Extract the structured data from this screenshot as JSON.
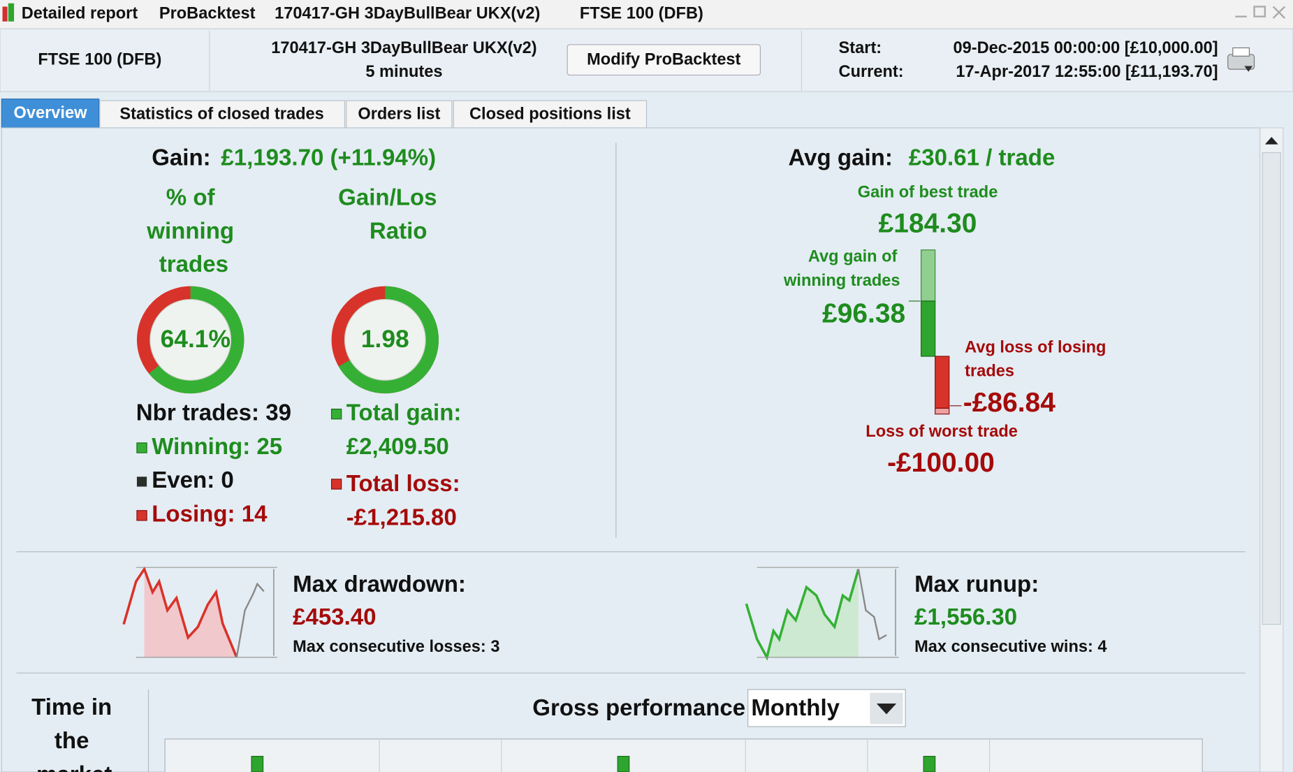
{
  "window": {
    "title_parts": [
      "Detailed report",
      "ProBacktest",
      "170417-GH 3DayBullBear UKX(v2)",
      "FTSE 100 (DFB)"
    ]
  },
  "header": {
    "instrument": "FTSE 100 (DFB)",
    "system": "170417-GH 3DayBullBear UKX(v2)",
    "timeframe": "5 minutes",
    "button": "Modify ProBacktest",
    "start_label": "Start:",
    "start_value": "09-Dec-2015 00:00:00 [£10,000.00]",
    "current_label": "Current:",
    "current_value": "17-Apr-2017 12:55:00 [£11,193.70]"
  },
  "tabs": [
    "Overview",
    "Statistics of closed trades",
    "Orders list",
    "Closed positions list"
  ],
  "overview": {
    "gain_label": "Gain:",
    "gain_value": "£1,193.70 (+11.94%)",
    "winning_pct_title": [
      "% of",
      "winning",
      "trades"
    ],
    "winning_pct": "64.1%",
    "ratio_title": [
      "Gain/Los",
      "Ratio"
    ],
    "ratio": "1.98",
    "nbr_trades": "Nbr trades: 39",
    "winning": "Winning: 25",
    "even": "Even: 0",
    "losing": "Losing: 14",
    "total_gain_label": "Total gain:",
    "total_gain": "£2,409.50",
    "total_loss_label": "Total loss:",
    "total_loss": "-£1,215.80",
    "avg_gain_label": "Avg gain:",
    "avg_gain": "£30.61 / trade",
    "best_label": "Gain of best trade",
    "best": "£184.30",
    "avg_win_label": [
      "Avg gain of",
      "winning trades"
    ],
    "avg_win": "£96.38",
    "avg_loss_label": [
      "Avg loss of losing",
      "trades"
    ],
    "avg_loss": "-£86.84",
    "worst_label": "Loss of worst trade",
    "worst": "-£100.00",
    "drawdown_label": "Max drawdown:",
    "drawdown": "£453.40",
    "max_losses": "Max consecutive losses: 3",
    "runup_label": "Max runup:",
    "runup": "£1,556.30",
    "max_wins": "Max consecutive wins: 4",
    "time_label": [
      "Time in",
      "the",
      "market"
    ],
    "gross_label": "Gross performance",
    "period": "Monthly"
  }
}
